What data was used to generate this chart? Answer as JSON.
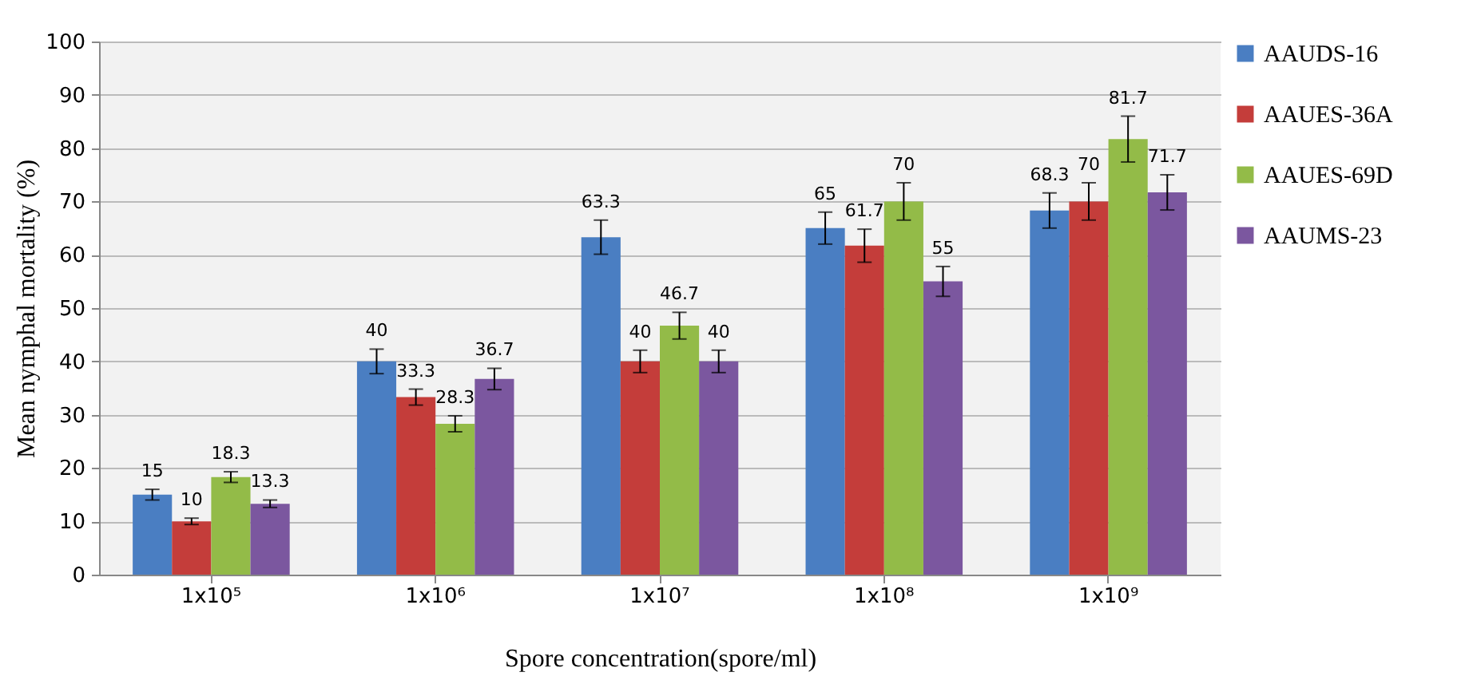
{
  "chart_data": {
    "type": "bar",
    "xlabel": "Spore concentration(spore/ml)",
    "ylabel": "Mean nymphal  mortality (%)",
    "categories": [
      "1x10⁵",
      "1x10⁶",
      "1x10⁷",
      "1x10⁸",
      "1x10⁹"
    ],
    "series": [
      {
        "name": "AAUDS-16",
        "color": "#4a7ec2",
        "values": [
          15,
          40,
          63.3,
          65,
          68.3
        ],
        "errors": [
          1,
          2.3,
          3.2,
          3,
          3.3
        ]
      },
      {
        "name": "AAUES-36A",
        "color": "#c43d3a",
        "values": [
          10,
          33.3,
          40,
          61.7,
          70
        ],
        "errors": [
          0.6,
          1.5,
          2.1,
          3.1,
          3.5
        ]
      },
      {
        "name": "AAUES-69D",
        "color": "#93bb48",
        "values": [
          18.3,
          28.3,
          46.7,
          70,
          81.7
        ],
        "errors": [
          1,
          1.5,
          2.5,
          3.5,
          4.3
        ]
      },
      {
        "name": "AAUMS-23",
        "color": "#7b579f",
        "values": [
          13.3,
          36.7,
          40,
          55,
          71.7
        ],
        "errors": [
          0.7,
          2,
          2.1,
          2.8,
          3.3
        ]
      }
    ],
    "ylim": [
      0,
      100
    ],
    "yticks": [
      0,
      10,
      20,
      30,
      40,
      50,
      60,
      70,
      80,
      90,
      100
    ],
    "grid": "y",
    "legend": "right",
    "data_labels": true
  }
}
